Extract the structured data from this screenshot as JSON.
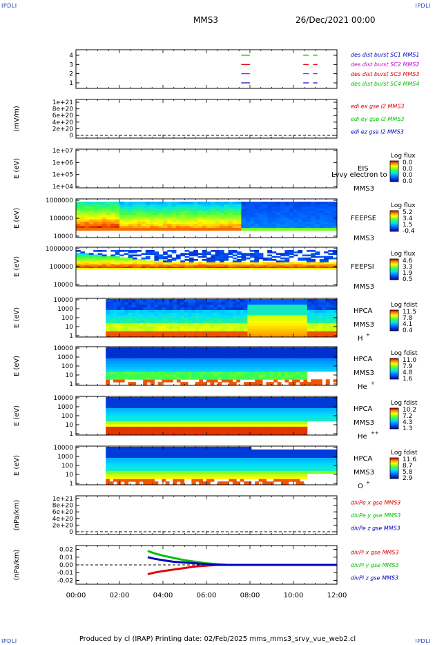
{
  "header": {
    "corner_label": "IPDLI",
    "spacecraft": "MMS3",
    "date_time": "26/Dec/2021 00:00"
  },
  "footer": {
    "text": "Produced by cl (IRAP)   Printing date: 02/Feb/2025   mms_mms3_srvy_vue_web2.cl"
  },
  "colors": {
    "red": "#e00000",
    "green": "#00c000",
    "blue": "#0000c0",
    "magenta": "#d000d0"
  },
  "chart_data": [
    {
      "type": "line",
      "name": "burst-availability",
      "ylim": [
        0.5,
        4.5
      ],
      "y_ticks": [
        "1",
        "2",
        "3",
        "4"
      ],
      "legend": [
        {
          "label": "des dist burst SC1 MMS1",
          "color": "#0000c0"
        },
        {
          "label": "des dist burst SC2 MMS2",
          "color": "#d000d0"
        },
        {
          "label": "des dist burst SC3 MMS3",
          "color": "#e00000"
        },
        {
          "label": "des dist burst SC4 MMS4",
          "color": "#00c000"
        }
      ],
      "intervals": [
        {
          "sc": 1,
          "start": 7.6,
          "end": 8.0
        },
        {
          "sc": 1,
          "start": 10.45,
          "end": 10.7
        },
        {
          "sc": 1,
          "start": 10.9,
          "end": 11.1
        },
        {
          "sc": 2,
          "start": 7.6,
          "end": 8.0
        },
        {
          "sc": 2,
          "start": 10.45,
          "end": 10.7
        },
        {
          "sc": 2,
          "start": 10.9,
          "end": 11.1
        },
        {
          "sc": 3,
          "start": 7.6,
          "end": 8.0
        },
        {
          "sc": 3,
          "start": 10.45,
          "end": 10.7
        },
        {
          "sc": 3,
          "start": 10.9,
          "end": 11.1
        },
        {
          "sc": 4,
          "start": 7.6,
          "end": 8.0
        },
        {
          "sc": 4,
          "start": 10.45,
          "end": 10.7
        },
        {
          "sc": 4,
          "start": 10.9,
          "end": 11.1
        }
      ]
    },
    {
      "type": "line",
      "name": "edi-efield",
      "ylabel": "(mV/m)",
      "ylim": [
        0,
        1.1e+21
      ],
      "y_ticks": [
        "0",
        "2e+20",
        "4e+20",
        "6e+20",
        "8e+20",
        "1e+21"
      ],
      "legend": [
        {
          "label": "edi ex gse l2 MMS3",
          "color": "#e00000"
        },
        {
          "label": "edi ey gse l2 MMS3",
          "color": "#00c000"
        },
        {
          "label": "edi ez gse l2 MMS3",
          "color": "#0000c0"
        }
      ]
    },
    {
      "type": "heatmap",
      "name": "eis",
      "ylabel": "E (eV)",
      "y_ticks": [
        "1e+04",
        "1e+05",
        "1e+06",
        "1e+07"
      ],
      "instrument": "EIS",
      "extra_label": "Lvvy electron to",
      "sc_label": "MMS3",
      "colorbar_title": "Log flux",
      "colorbar_ticks": [
        "0.0",
        "0.0",
        "0.0",
        "0.0"
      ]
    },
    {
      "type": "heatmap",
      "name": "feeps-electron",
      "ylabel": "E (eV)",
      "y_ticks": [
        "10000",
        "100000",
        "1000000"
      ],
      "instrument": "FEEPSE",
      "sc_label": "MMS3",
      "colorbar_title": "Log flux",
      "colorbar_ticks": [
        "5.2",
        "3.4",
        "1.5",
        "-0.4"
      ]
    },
    {
      "type": "heatmap",
      "name": "feeps-ion",
      "ylabel": "E (eV)",
      "y_ticks": [
        "10000",
        "100000",
        "1000000"
      ],
      "instrument": "FEEPSI",
      "sc_label": "MMS3",
      "colorbar_title": "Log flux",
      "colorbar_ticks": [
        "4.6",
        "3.3",
        "1.9",
        "0.5"
      ]
    },
    {
      "type": "heatmap",
      "name": "hpca-h",
      "ylabel": "E (eV)",
      "y_ticks": [
        "1",
        "10",
        "100",
        "1000",
        "10000"
      ],
      "instrument": "HPCA",
      "sc_label": "MMS3",
      "species": "H",
      "species_sup": "+",
      "colorbar_title": "Log fdist",
      "colorbar_ticks": [
        "11.5",
        "7.8",
        "4.1",
        "0.4"
      ]
    },
    {
      "type": "heatmap",
      "name": "hpca-he",
      "ylabel": "E (eV)",
      "y_ticks": [
        "1",
        "10",
        "100",
        "1000",
        "10000"
      ],
      "instrument": "HPCA",
      "sc_label": "MMS3",
      "species": "He",
      "species_sup": "+",
      "colorbar_title": "Log fdist",
      "colorbar_ticks": [
        "11.0",
        "7.9",
        "4.8",
        "1.6"
      ]
    },
    {
      "type": "heatmap",
      "name": "hpca-he2",
      "ylabel": "E (eV)",
      "y_ticks": [
        "1",
        "10",
        "100",
        "1000",
        "10000"
      ],
      "instrument": "HPCA",
      "sc_label": "MMS3",
      "species": "He",
      "species_sup": "++",
      "colorbar_title": "Log fdist",
      "colorbar_ticks": [
        "10.2",
        "7.2",
        "4.3",
        "1.3"
      ]
    },
    {
      "type": "heatmap",
      "name": "hpca-o",
      "ylabel": "E (eV)",
      "y_ticks": [
        "1",
        "10",
        "100",
        "1000",
        "10000"
      ],
      "instrument": "HPCA",
      "sc_label": "MMS3",
      "species": "O",
      "species_sup": "+",
      "colorbar_title": "Log fdist",
      "colorbar_ticks": [
        "11.6",
        "8.7",
        "5.8",
        "2.9"
      ]
    },
    {
      "type": "line",
      "name": "divpe",
      "ylabel": "(nPa/km)",
      "ylim": [
        0,
        1.1e+21
      ],
      "y_ticks": [
        "0",
        "2e+20",
        "4e+20",
        "6e+20",
        "8e+20",
        "1e+21"
      ],
      "legend": [
        {
          "label": "divPe x gse MMS3",
          "color": "#e00000"
        },
        {
          "label": "divPe y gse MMS3",
          "color": "#00c000"
        },
        {
          "label": "divPe z gse MMS3",
          "color": "#0000c0"
        }
      ]
    },
    {
      "type": "line",
      "name": "divpi",
      "ylabel": "(nPa/km)",
      "ylim": [
        -0.025,
        0.025
      ],
      "y_ticks": [
        "-0.02",
        "-0.01",
        "0.00",
        "0.01",
        "0.02"
      ],
      "x_ticks": [
        "00:00",
        "02:00",
        "04:00",
        "06:00",
        "08:00",
        "10:00",
        "12:00"
      ],
      "xlim_hours": [
        0,
        12
      ],
      "legend": [
        {
          "label": "divPi x gse MMS3",
          "color": "#e00000"
        },
        {
          "label": "divPi y gse MMS3",
          "color": "#00c000"
        },
        {
          "label": "divPi z gse MMS3",
          "color": "#0000c0"
        }
      ],
      "series": [
        {
          "name": "divPi x gse MMS3",
          "color": "#e00000",
          "x": [
            3.3,
            3.6,
            4.0,
            4.5,
            5.0,
            5.5,
            6.0,
            6.5,
            7.0,
            8.0,
            9.0,
            10.0,
            11.0,
            12.0
          ],
          "y": [
            -0.012,
            -0.01,
            -0.008,
            -0.006,
            -0.004,
            -0.002,
            -0.001,
            0.0,
            0.0,
            0.0,
            0.0,
            0.0,
            0.0,
            0.0
          ]
        },
        {
          "name": "divPi y gse MMS3",
          "color": "#00c000",
          "x": [
            3.3,
            3.6,
            4.0,
            4.5,
            5.0,
            5.5,
            6.0,
            6.5,
            7.0,
            8.0,
            9.0,
            10.0,
            11.0,
            12.0
          ],
          "y": [
            0.018,
            0.015,
            0.012,
            0.009,
            0.006,
            0.004,
            0.002,
            0.001,
            0.0,
            0.0,
            0.0,
            0.0,
            0.0,
            0.0
          ]
        },
        {
          "name": "divPi z gse MMS3",
          "color": "#0000c0",
          "x": [
            3.3,
            3.6,
            4.0,
            4.5,
            5.0,
            5.5,
            6.0,
            6.5,
            7.0,
            8.0,
            9.0,
            10.0,
            11.0,
            12.0
          ],
          "y": [
            0.01,
            0.008,
            0.006,
            0.004,
            0.003,
            0.002,
            0.001,
            0.0,
            0.0,
            0.0,
            0.0,
            0.0,
            0.0,
            0.0
          ]
        }
      ]
    }
  ]
}
